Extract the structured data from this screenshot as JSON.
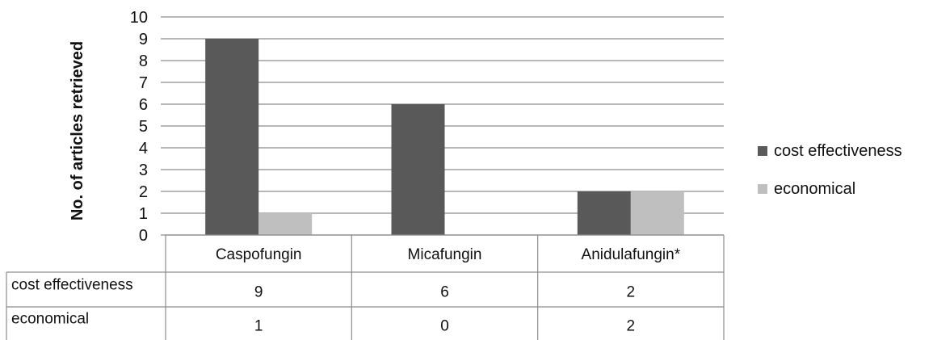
{
  "chart_data": {
    "type": "bar",
    "title": "",
    "xlabel": "",
    "ylabel": "No. of articles retrieved",
    "ylim": [
      0,
      10
    ],
    "yticks": [
      0,
      1,
      2,
      3,
      4,
      5,
      6,
      7,
      8,
      9,
      10
    ],
    "grid": true,
    "legend_position": "right",
    "categories": [
      "Caspofungin",
      "Micafungin",
      "Anidulafungin*"
    ],
    "series": [
      {
        "name": "cost effectiveness",
        "values": [
          9,
          6,
          2
        ],
        "color": "#595959"
      },
      {
        "name": "economical",
        "values": [
          1,
          0,
          2
        ],
        "color": "#bfbfbf"
      }
    ],
    "data_table": {
      "rows": [
        {
          "label": "cost effectiveness",
          "cells": [
            "9",
            "6",
            "2"
          ]
        },
        {
          "label": "economical",
          "cells": [
            "1",
            "0",
            "2"
          ]
        }
      ]
    }
  }
}
